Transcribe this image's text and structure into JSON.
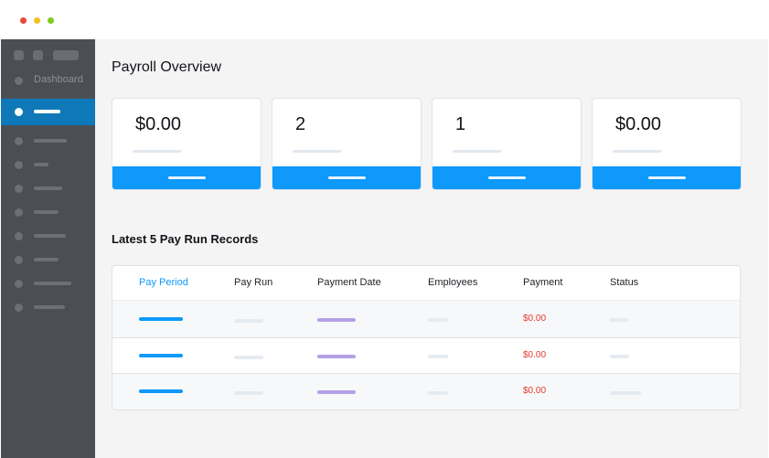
{
  "window": {
    "controls": [
      {
        "name": "close",
        "color": "#e9493d"
      },
      {
        "name": "minimize",
        "color": "#f2bf23"
      },
      {
        "name": "maximize",
        "color": "#7bcb1f"
      }
    ]
  },
  "sidebar": {
    "items": [
      {
        "label": "Dashboard"
      }
    ]
  },
  "page": {
    "title": "Payroll Overview",
    "cards": [
      {
        "value": "$0.00"
      },
      {
        "value": "2"
      },
      {
        "value": "1"
      },
      {
        "value": "$0.00"
      }
    ],
    "section_title": "Latest 5 Pay Run Records"
  },
  "table": {
    "columns": [
      "Pay Period",
      "Pay Run",
      "Payment Date",
      "Employees",
      "Payment",
      "Status"
    ],
    "rows": [
      {
        "payment": "$0.00"
      },
      {
        "payment": "$0.00"
      },
      {
        "payment": "$0.00"
      }
    ]
  },
  "colors": {
    "accent": "#0e99fb",
    "sidebar_bg": "#4b4f53",
    "sidebar_active": "#0e78b8",
    "payment_red": "#e8362b",
    "date_purple": "#b4a0e6"
  }
}
